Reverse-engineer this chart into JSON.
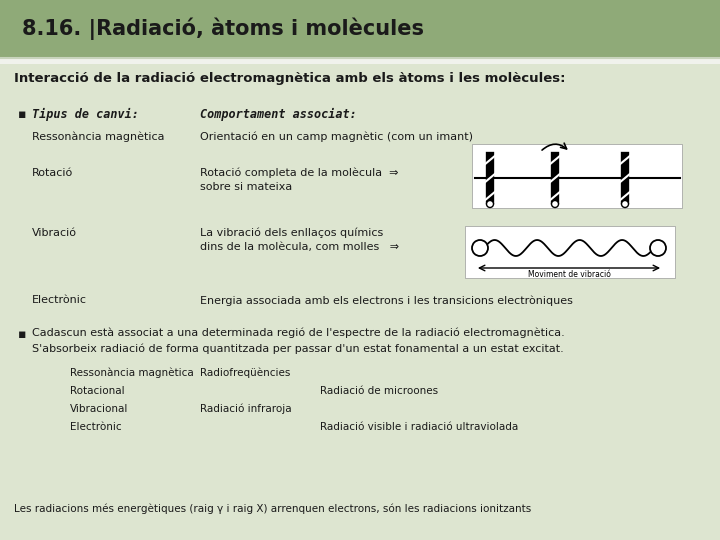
{
  "header_bg": "#8faa78",
  "header_text": "8.16. |Radiació, àtoms i molècules",
  "header_text_color": "#1a1a1a",
  "body_bg": "#dde5d0",
  "body_text_color": "#1a1a1a",
  "subtitle": "Interacció de la radiació electromagnètica amb els àtoms i les molècules:",
  "col1_header": "Tipus de canvi:",
  "col2_header": "Comportament associat:",
  "row1_col1": "Ressonància magnètica",
  "row1_col2": "Orientació en un camp magnètic (com un imant)",
  "row2_col1": "Rotació",
  "row2_col2a": "Rotació completa de la molècula  ⇒",
  "row2_col2b": "sobre si mateixa",
  "row3_col1": "Vibració",
  "row3_col2a": "La vibració dels enllaços químics",
  "row3_col2b": "dins de la molècula, com molles   ⇒",
  "row4_col1": "Electrònic",
  "row4_col2": "Energia associada amb els electrons i les transicions electròniques",
  "bullet2_line1": "Cadascun està associat a una determinada regió de l'espectre de la radiació electromagnètica.",
  "bullet2_line2": "S'absorbeix radiació de forma quantitzada per passar d'un estat fonamental a un estat excitat.",
  "spec1a": "Ressonància magnètica",
  "spec1b": "Radiofreqüències",
  "spec2a": "Rotacional",
  "spec2b": "Radiació de microones",
  "spec3a": "Vibracional",
  "spec3b": "Radiació infraroja",
  "spec4a": "Electrònic",
  "spec4b": "Radiació visible i radiació ultraviolada",
  "footer": "Les radiacions més energètiques (raig γ i raig X) arrenquen electrons, són les radiacions ionitzants",
  "font_family": "DejaVu Sans"
}
